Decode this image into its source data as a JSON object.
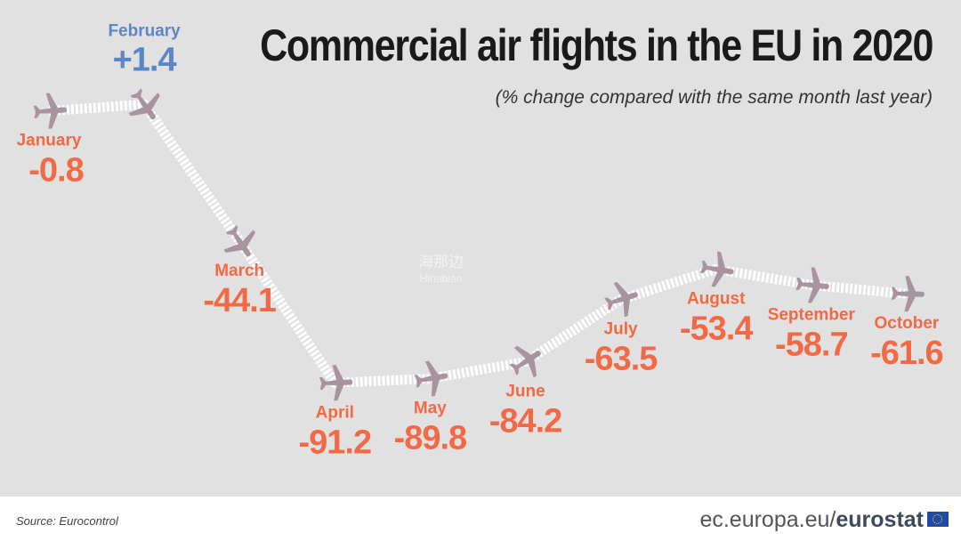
{
  "chart_data": {
    "type": "line",
    "title": "Commercial air flights in the EU in 2020",
    "subtitle": "(% change compared with the same month last year)",
    "xlabel": "",
    "ylabel": "% change",
    "categories": [
      "January",
      "February",
      "March",
      "April",
      "May",
      "June",
      "July",
      "August",
      "September",
      "October"
    ],
    "values": [
      -0.8,
      1.4,
      -44.1,
      -91.2,
      -89.8,
      -84.2,
      -63.5,
      -53.4,
      -58.7,
      -61.6
    ],
    "value_labels": [
      "-0.8",
      "+1.4",
      "-44.1",
      "-91.2",
      "-89.8",
      "-84.2",
      "-63.5",
      "-53.4",
      "-58.7",
      "-61.6"
    ],
    "marker": "airplane-icon",
    "grid": false
  },
  "colors": {
    "negative": "#f26a45",
    "positive": "#5b86c8",
    "plane": "#a8949f",
    "background": "#e1e1e1"
  },
  "footer": {
    "source": "Source: Eurocontrol",
    "site_prefix": "ec.europa.eu/",
    "site_brand": "eurostat"
  },
  "watermark": {
    "cn": "海那边",
    "en": "Hinabian"
  }
}
